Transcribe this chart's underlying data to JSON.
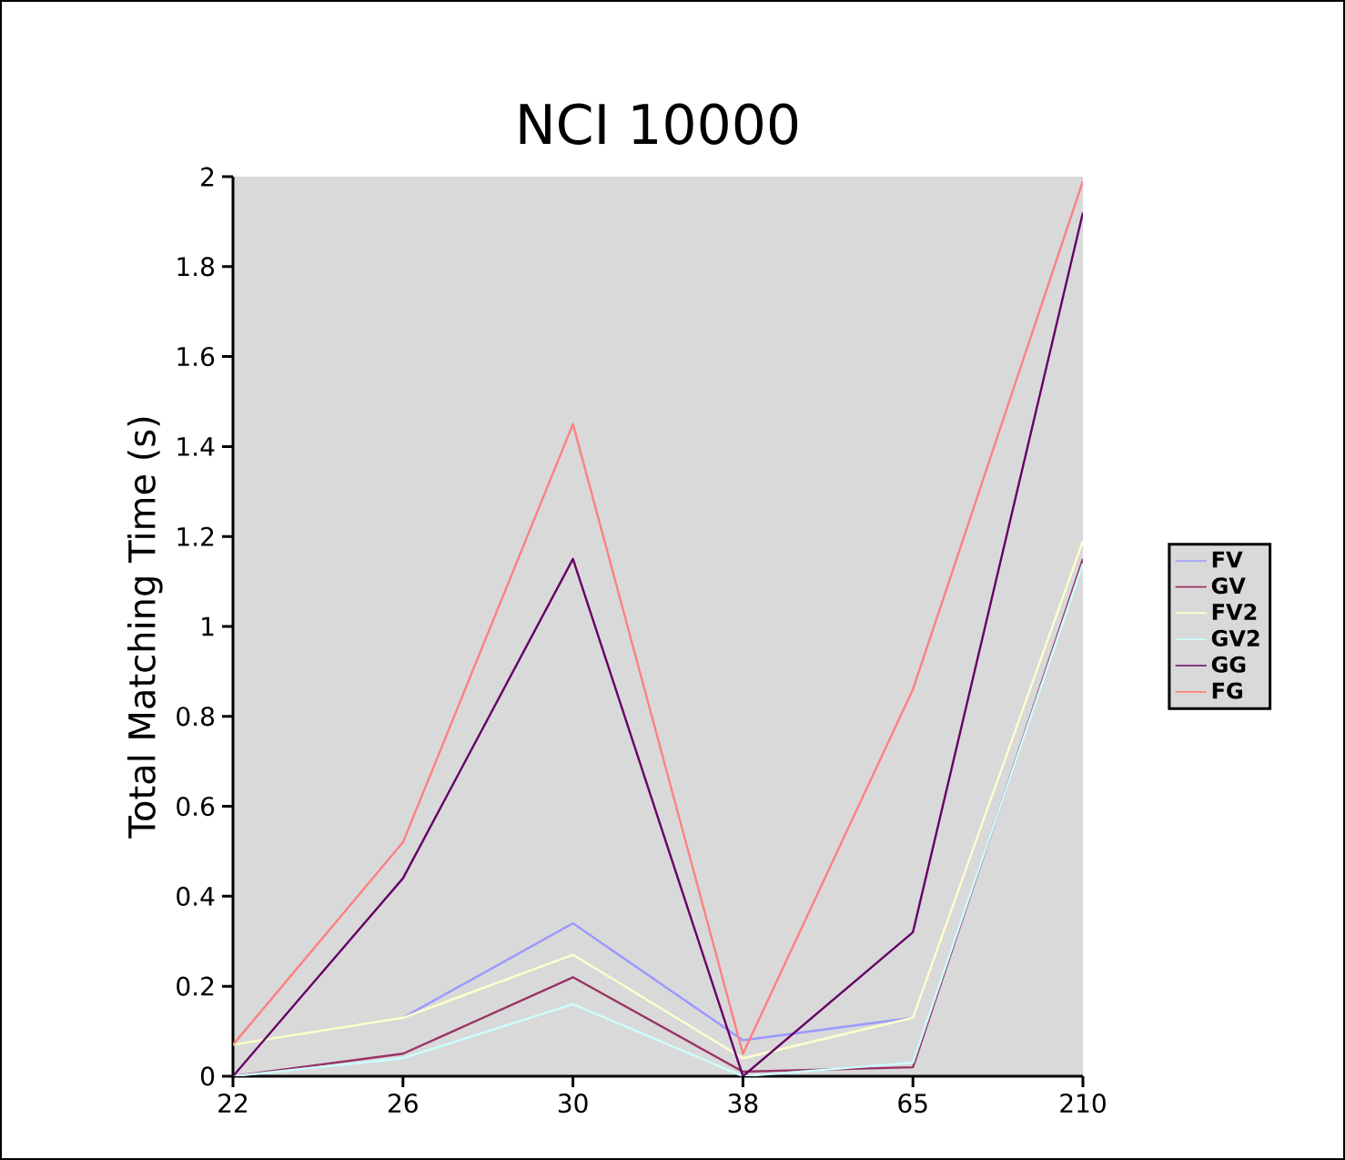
{
  "chart_data": {
    "type": "line",
    "title": "NCI 10000",
    "ylabel": "Total Matching Time (s)",
    "categories": [
      "22",
      "26",
      "30",
      "38",
      "65",
      "210"
    ],
    "ylim": [
      0,
      2
    ],
    "yticks": [
      0,
      0.2,
      0.4,
      0.6,
      0.8,
      1,
      1.2,
      1.4,
      1.6,
      1.8,
      2
    ],
    "grid": false,
    "legend": "right",
    "marker": "none",
    "line_style": "solid",
    "series": [
      {
        "name": "FV",
        "color": "#9999ff",
        "values": [
          null,
          0.13,
          0.34,
          0.08,
          0.13,
          null
        ]
      },
      {
        "name": "GV",
        "color": "#993366",
        "values": [
          0,
          0.05,
          0.22,
          0.01,
          0.02,
          1.15
        ]
      },
      {
        "name": "FV2",
        "color": "#ffffcc",
        "values": [
          0.07,
          0.13,
          0.27,
          0.04,
          0.13,
          1.19
        ]
      },
      {
        "name": "GV2",
        "color": "#ccffff",
        "values": [
          0,
          0.04,
          0.16,
          0,
          0.03,
          1.14
        ]
      },
      {
        "name": "GG",
        "color": "#660066",
        "values": [
          0,
          0.44,
          1.15,
          0,
          0.32,
          1.92
        ]
      },
      {
        "name": "FG",
        "color": "#ff8080",
        "values": [
          0.07,
          0.52,
          1.45,
          0.05,
          0.86,
          1.99
        ]
      }
    ]
  }
}
